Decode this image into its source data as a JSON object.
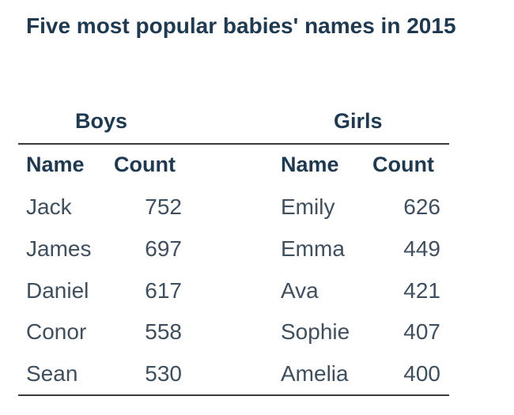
{
  "title": "Five most popular babies' names in 2015",
  "boys": {
    "heading": "Boys",
    "name_header": "Name",
    "count_header": "Count",
    "rows": [
      {
        "name": "Jack",
        "count": "752"
      },
      {
        "name": "James",
        "count": "697"
      },
      {
        "name": "Daniel",
        "count": "617"
      },
      {
        "name": "Conor",
        "count": "558"
      },
      {
        "name": "Sean",
        "count": "530"
      }
    ]
  },
  "girls": {
    "heading": "Girls",
    "name_header": "Name",
    "count_header": "Count",
    "rows": [
      {
        "name": "Emily",
        "count": "626"
      },
      {
        "name": "Emma",
        "count": "449"
      },
      {
        "name": "Ava",
        "count": "421"
      },
      {
        "name": "Sophie",
        "count": "407"
      },
      {
        "name": "Amelia",
        "count": "400"
      }
    ]
  },
  "colors": {
    "heading": "#1d3a52",
    "body_text": "#3e4f5f",
    "rule": "#3a3a3a"
  }
}
